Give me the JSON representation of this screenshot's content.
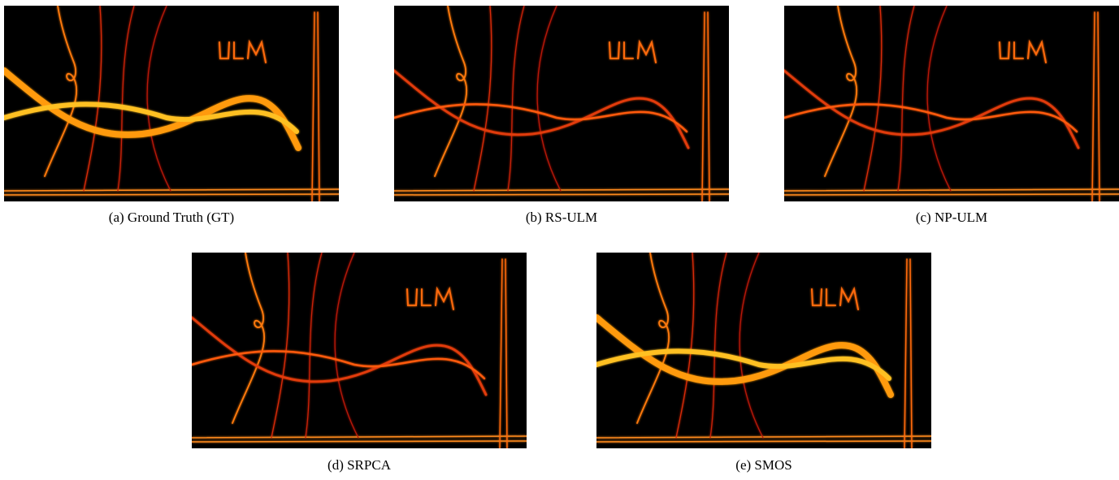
{
  "figure": {
    "panels": [
      {
        "caption": "(a) Ground Truth (GT)"
      },
      {
        "caption": "(b) RS-ULM"
      },
      {
        "caption": "(c) NP-ULM"
      },
      {
        "caption": "(d) SRPCA"
      },
      {
        "caption": "(e) SMOS"
      }
    ]
  }
}
